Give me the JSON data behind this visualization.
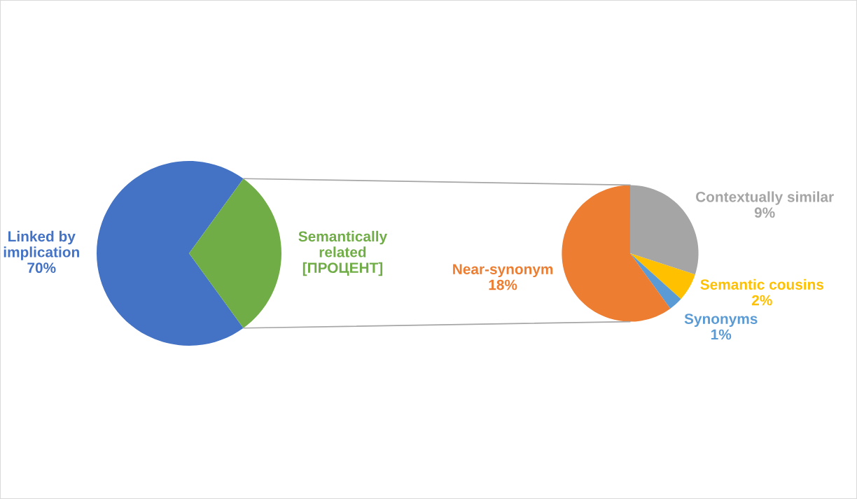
{
  "chart_data": [
    {
      "type": "pie",
      "categories": [
        "Linked by\nimplication",
        "Semantically\nrelated"
      ],
      "values": [
        70,
        30
      ],
      "colors": [
        "#4472c4",
        "#70ad47"
      ],
      "value_labels": [
        "70%",
        "[ПРОЦЕНТ]"
      ]
    },
    {
      "type": "pie",
      "categories": [
        "Contextually similar",
        "Semantic cousins",
        "Synonyms",
        "Near-synonym"
      ],
      "values": [
        9,
        2,
        1,
        18
      ],
      "colors": [
        "#a5a5a5",
        "#ffc000",
        "#5b9bd5",
        "#ed7d31"
      ],
      "value_labels": [
        "9%",
        "2%",
        "1%",
        "18%"
      ]
    }
  ]
}
